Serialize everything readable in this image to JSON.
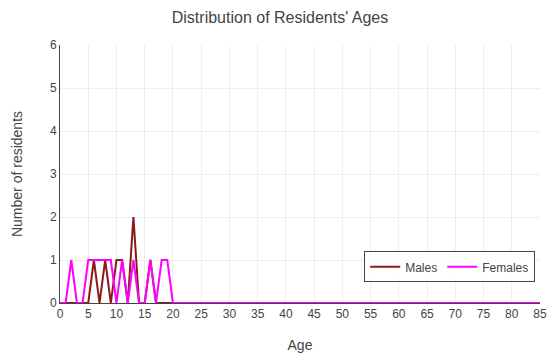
{
  "chart_data": {
    "type": "line",
    "title": "Distribution of Residents' Ages",
    "xlabel": "Age",
    "ylabel": "Number of residents",
    "x": [
      0,
      1,
      2,
      3,
      4,
      5,
      6,
      7,
      8,
      9,
      10,
      11,
      12,
      13,
      14,
      15,
      16,
      17,
      18,
      19,
      20,
      21,
      85
    ],
    "series": [
      {
        "name": "Males",
        "color": "#8B1A1A",
        "values": [
          0,
          0,
          0,
          0,
          0,
          0,
          1,
          0,
          1,
          0,
          1,
          1,
          0,
          2,
          0,
          0,
          1,
          0,
          0,
          0,
          0,
          0,
          0
        ]
      },
      {
        "name": "Females",
        "color": "#FF00FF",
        "values": [
          0,
          0,
          1,
          0,
          0,
          1,
          1,
          1,
          1,
          1,
          0,
          1,
          0,
          1,
          0,
          0,
          1,
          0,
          1,
          1,
          0,
          0,
          0
        ]
      }
    ],
    "xlim": [
      0,
      85
    ],
    "ylim": [
      0,
      6
    ],
    "xticks": [
      0,
      5,
      10,
      15,
      20,
      25,
      30,
      35,
      40,
      45,
      50,
      55,
      60,
      65,
      70,
      75,
      80,
      85
    ],
    "yticks": [
      0,
      1,
      2,
      3,
      4,
      5,
      6
    ],
    "grid": true,
    "legend": "lower right"
  }
}
